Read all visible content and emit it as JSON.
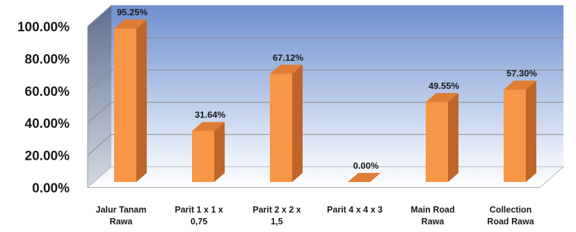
{
  "chart_data": {
    "type": "bar",
    "title": "",
    "xlabel": "",
    "ylabel": "",
    "categories": [
      [
        "Jalur Tanam",
        "Rawa"
      ],
      [
        "Parit 1 x 1 x",
        "0,75"
      ],
      [
        "Parit 2 x 2 x",
        "1,5"
      ],
      [
        "Parit 4 x 4 x 3"
      ],
      [
        "Main Road",
        "Rawa"
      ],
      [
        "Collection",
        "Road Rawa"
      ]
    ],
    "values": [
      95.25,
      31.64,
      67.12,
      0.0,
      49.55,
      57.3
    ],
    "data_labels": [
      "95.25%",
      "31.64%",
      "67.12%",
      "0.00%",
      "49.55%",
      "57.30%"
    ],
    "ylim": [
      0,
      100
    ],
    "yticks": [
      "0.00%",
      "20.00%",
      "40.00%",
      "60.00%",
      "80.00%",
      "100.00%"
    ],
    "grid": true,
    "style": "3d",
    "colors": {
      "bar_front": "#F79646",
      "bar_side": "#C0652A",
      "bar_top": "#E07D35",
      "wall_top": "#6E8FD0",
      "wall_bottom": "#F2F6FC",
      "side_wall_top": "#5F6E8E",
      "side_wall_bottom": "#D4D9E4"
    }
  }
}
